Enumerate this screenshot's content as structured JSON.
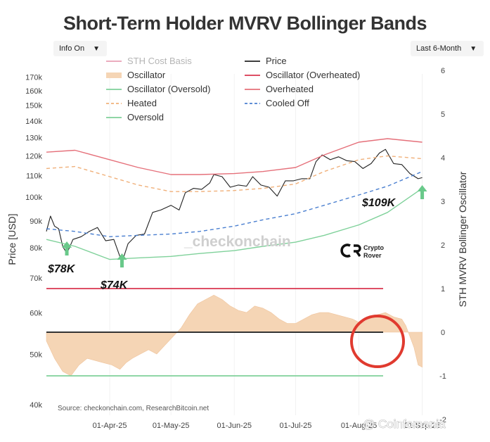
{
  "title": "Short-Term Holder MVRV Bollinger Bands",
  "controls": {
    "info_label": "Info On",
    "range_label": "Last 6-Month",
    "arrow_icon": "triangle-down-icon"
  },
  "watermark": "_checkonchain",
  "source": "Source: checkonchain.com, ResearchBitcoin.net",
  "brand": {
    "line1": "Crypto",
    "line2": "Rover"
  },
  "credit": "@ Coinfomania",
  "annotations": [
    {
      "text": "$78K",
      "date": "2025-03-11"
    },
    {
      "text": "$74K",
      "date": "2025-04-07"
    },
    {
      "text": "$109K",
      "date": "2025-09-01"
    }
  ],
  "chart_data": {
    "type": "line",
    "ylabel": "Price [USD]",
    "y2label": "STH MVRV Bollinger Oscillator",
    "yscale": "log",
    "ylim": [
      37500,
      175000
    ],
    "y2lim": [
      -2,
      6
    ],
    "xlim": [
      "2025-03-01",
      "2025-09-07"
    ],
    "x_ticks": [
      "01-Apr-25",
      "01-May-25",
      "01-Jun-25",
      "01-Jul-25",
      "01-Aug-25",
      "01-Sep-25"
    ],
    "y_ticks": [
      "40k",
      "50k",
      "60k",
      "70k",
      "80k",
      "90k",
      "100k",
      "110k",
      "120k",
      "130k",
      "140k",
      "150k",
      "160k",
      "170k"
    ],
    "y2_ticks": [
      "-2",
      "-1",
      "0",
      "1",
      "2",
      "3",
      "4",
      "5",
      "6"
    ],
    "legend_placement": "top-left",
    "legend": [
      {
        "label": "STH Cost Basis",
        "color": "#e8a0b4",
        "style": "solid",
        "dim": true
      },
      {
        "label": "Price",
        "color": "#222222",
        "style": "solid"
      },
      {
        "label": "Oscillator",
        "color": "#f5d5b5",
        "style": "area"
      },
      {
        "label": "Oscillator (Overheated)",
        "color": "#d9364f",
        "style": "solid"
      },
      {
        "label": "Oscillator (Oversold)",
        "color": "#7fd19a",
        "style": "solid"
      },
      {
        "label": "Overheated",
        "color": "#e5707a",
        "style": "solid"
      },
      {
        "label": "Heated",
        "color": "#f0b07a",
        "style": "dashed"
      },
      {
        "label": "Cooled Off",
        "color": "#4a7fd0",
        "style": "dashed"
      },
      {
        "label": "Oversold",
        "color": "#7fd19a",
        "style": "solid"
      }
    ],
    "reference_lines": [
      {
        "name": "Oscillator (Overheated)",
        "y2": 1,
        "color": "#d9364f"
      },
      {
        "name": "Zero",
        "y2": 0,
        "color": "#333333"
      },
      {
        "name": "Oscillator (Oversold)",
        "y2": -1,
        "color": "#7fd19a"
      }
    ],
    "series": [
      {
        "name": "Price",
        "color": "#222222",
        "axis": "price",
        "x": [
          "2025-03-01",
          "2025-03-03",
          "2025-03-05",
          "2025-03-07",
          "2025-03-09",
          "2025-03-11",
          "2025-03-14",
          "2025-03-18",
          "2025-03-22",
          "2025-03-26",
          "2025-03-30",
          "2025-04-03",
          "2025-04-07",
          "2025-04-10",
          "2025-04-14",
          "2025-04-18",
          "2025-04-22",
          "2025-04-26",
          "2025-05-01",
          "2025-05-05",
          "2025-05-08",
          "2025-05-12",
          "2025-05-16",
          "2025-05-20",
          "2025-05-22",
          "2025-05-26",
          "2025-05-30",
          "2025-06-03",
          "2025-06-07",
          "2025-06-10",
          "2025-06-14",
          "2025-06-18",
          "2025-06-22",
          "2025-06-26",
          "2025-06-30",
          "2025-07-04",
          "2025-07-08",
          "2025-07-11",
          "2025-07-14",
          "2025-07-18",
          "2025-07-22",
          "2025-07-26",
          "2025-07-30",
          "2025-08-03",
          "2025-08-07",
          "2025-08-11",
          "2025-08-14",
          "2025-08-18",
          "2025-08-22",
          "2025-08-26",
          "2025-08-30",
          "2025-09-01"
        ],
        "values": [
          86000,
          92000,
          88000,
          87000,
          80500,
          78000,
          83000,
          84000,
          86000,
          87500,
          82500,
          83000,
          75000,
          81500,
          84500,
          85000,
          93500,
          94500,
          96500,
          94500,
          102000,
          104000,
          103500,
          106500,
          110500,
          109500,
          104500,
          105500,
          105000,
          109500,
          105500,
          104500,
          100500,
          107500,
          107500,
          108500,
          108500,
          117000,
          120500,
          118000,
          119500,
          117500,
          117000,
          113500,
          116000,
          121500,
          123500,
          116000,
          115500,
          111000,
          108500,
          109000
        ]
      },
      {
        "name": "Overheated",
        "color": "#e5707a",
        "axis": "price",
        "x": [
          "2025-03-01",
          "2025-03-15",
          "2025-04-01",
          "2025-04-15",
          "2025-05-01",
          "2025-05-15",
          "2025-06-01",
          "2025-06-15",
          "2025-07-01",
          "2025-07-15",
          "2025-08-01",
          "2025-08-15",
          "2025-09-01"
        ],
        "values": [
          122000,
          123000,
          118000,
          114000,
          110500,
          110500,
          111000,
          112000,
          114000,
          120500,
          127500,
          129500,
          127500
        ]
      },
      {
        "name": "Heated",
        "color": "#f0b07a",
        "axis": "price",
        "dashed": true,
        "x": [
          "2025-03-01",
          "2025-03-15",
          "2025-04-01",
          "2025-04-15",
          "2025-05-01",
          "2025-05-15",
          "2025-06-01",
          "2025-06-15",
          "2025-07-01",
          "2025-07-15",
          "2025-08-01",
          "2025-08-15",
          "2025-09-01"
        ],
        "values": [
          113500,
          114500,
          109500,
          105500,
          102500,
          102500,
          103000,
          104000,
          106000,
          112000,
          118000,
          120000,
          118500
        ]
      },
      {
        "name": "Cooled Off",
        "color": "#4a7fd0",
        "axis": "price",
        "dashed": true,
        "x": [
          "2025-03-01",
          "2025-03-15",
          "2025-04-01",
          "2025-04-15",
          "2025-05-01",
          "2025-05-15",
          "2025-06-01",
          "2025-06-15",
          "2025-07-01",
          "2025-07-15",
          "2025-08-01",
          "2025-08-15",
          "2025-09-01"
        ],
        "values": [
          87000,
          86000,
          84000,
          84500,
          85000,
          86000,
          88000,
          90500,
          93000,
          96500,
          101000,
          105000,
          112000
        ]
      },
      {
        "name": "Oversold",
        "color": "#7fd19a",
        "axis": "price",
        "x": [
          "2025-03-01",
          "2025-03-15",
          "2025-04-01",
          "2025-04-15",
          "2025-05-01",
          "2025-05-15",
          "2025-06-01",
          "2025-06-15",
          "2025-07-01",
          "2025-07-15",
          "2025-08-01",
          "2025-08-15",
          "2025-09-01"
        ],
        "values": [
          83000,
          80500,
          76000,
          76500,
          77000,
          78000,
          79000,
          80500,
          82000,
          84500,
          88500,
          93500,
          104000
        ]
      },
      {
        "name": "Oscillator",
        "color": "#f5d5b5",
        "axis": "oscillator",
        "fill": true,
        "x": [
          "2025-03-01",
          "2025-03-05",
          "2025-03-09",
          "2025-03-13",
          "2025-03-17",
          "2025-03-21",
          "2025-03-25",
          "2025-03-29",
          "2025-04-02",
          "2025-04-06",
          "2025-04-09",
          "2025-04-12",
          "2025-04-16",
          "2025-04-20",
          "2025-04-24",
          "2025-04-28",
          "2025-05-02",
          "2025-05-06",
          "2025-05-10",
          "2025-05-14",
          "2025-05-18",
          "2025-05-22",
          "2025-05-26",
          "2025-05-30",
          "2025-06-03",
          "2025-06-07",
          "2025-06-11",
          "2025-06-15",
          "2025-06-19",
          "2025-06-23",
          "2025-06-27",
          "2025-07-01",
          "2025-07-05",
          "2025-07-09",
          "2025-07-13",
          "2025-07-17",
          "2025-07-21",
          "2025-07-25",
          "2025-07-29",
          "2025-08-02",
          "2025-08-06",
          "2025-08-10",
          "2025-08-14",
          "2025-08-18",
          "2025-08-22",
          "2025-08-24",
          "2025-08-26",
          "2025-08-28",
          "2025-08-30",
          "2025-09-01"
        ],
        "values": [
          -0.2,
          -0.6,
          -0.9,
          -1.0,
          -0.75,
          -0.6,
          -0.65,
          -0.7,
          -0.75,
          -0.85,
          -0.7,
          -0.6,
          -0.5,
          -0.4,
          -0.5,
          -0.3,
          -0.1,
          0.1,
          0.4,
          0.65,
          0.75,
          0.85,
          0.75,
          0.6,
          0.5,
          0.45,
          0.6,
          0.55,
          0.45,
          0.3,
          0.2,
          0.2,
          0.3,
          0.4,
          0.45,
          0.45,
          0.4,
          0.35,
          0.3,
          0.2,
          0.3,
          0.4,
          0.45,
          0.35,
          0.3,
          0.15,
          -0.1,
          -0.35,
          -0.75,
          -0.8
        ]
      }
    ]
  }
}
